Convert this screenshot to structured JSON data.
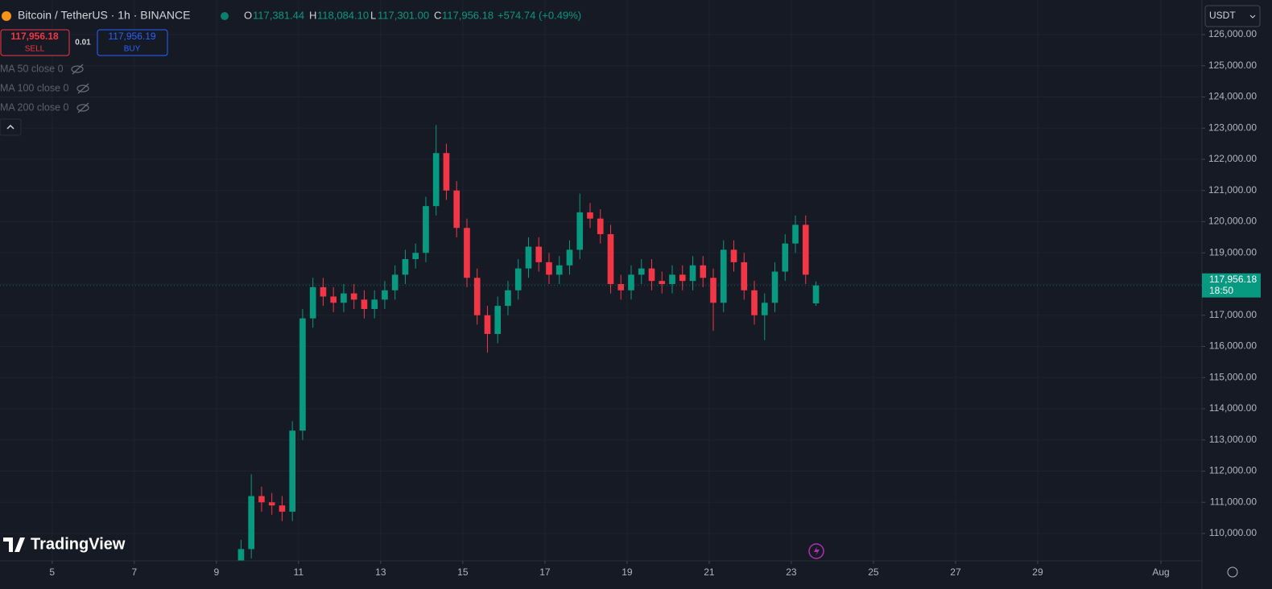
{
  "header": {
    "symbol": "Bitcoin / TetherUS · 1h · BINANCE",
    "o_label": "O",
    "open": "117,381.44",
    "h_label": "H",
    "high": "118,084.10",
    "l_label": "L",
    "low": "117,301.00",
    "c_label": "C",
    "close": "117,956.18",
    "change": "+574.74 (+0.49%)"
  },
  "trade": {
    "sell_price": "117,956.18",
    "sell": "SELL",
    "qty": "0.01",
    "buy_price": "117,956.19",
    "buy": "BUY"
  },
  "indicators": [
    "MA 50 close 0",
    "MA 100 close 0",
    "MA 200 close 0"
  ],
  "currency": "USDT",
  "logo": "TradingView",
  "price_tag": {
    "price": "117,956.18",
    "countdown": "18:50"
  },
  "chart_data": {
    "type": "candlestick",
    "x": [
      9.6,
      9.85,
      10.1,
      10.35,
      10.6,
      10.85,
      11.1,
      11.35,
      11.6,
      11.85,
      12.1,
      12.35,
      12.6,
      12.85,
      13.1,
      13.35,
      13.6,
      13.85,
      14.1,
      14.35,
      14.6,
      14.85,
      15.1,
      15.35,
      15.6,
      15.85,
      16.1,
      16.35,
      16.6,
      16.85,
      17.1,
      17.35,
      17.6,
      17.85,
      18.1,
      18.35,
      18.6,
      18.85,
      19.1,
      19.35,
      19.6,
      19.85,
      20.1,
      20.35,
      20.6,
      20.85,
      21.1,
      21.35,
      21.6,
      21.85,
      22.1,
      22.35,
      22.6,
      22.85,
      23.1,
      23.35,
      23.6
    ],
    "open": [
      108800,
      109500,
      111200,
      111000,
      110900,
      110700,
      113300,
      116900,
      117900,
      117600,
      117400,
      117700,
      117500,
      117200,
      117500,
      117800,
      118300,
      118800,
      119000,
      120500,
      122200,
      121000,
      119800,
      118200,
      117000,
      116400,
      117300,
      117800,
      118500,
      119200,
      118700,
      118300,
      118600,
      119100,
      120300,
      120100,
      119600,
      118000,
      117800,
      118300,
      118500,
      118100,
      118000,
      118300,
      118100,
      118600,
      118200,
      117400,
      119100,
      118700,
      117800,
      117000,
      117400,
      118400,
      119300,
      119900,
      117381.44
    ],
    "high": [
      109800,
      111900,
      111500,
      111300,
      111200,
      113600,
      117200,
      118200,
      118200,
      117900,
      118000,
      118000,
      117800,
      117800,
      118100,
      118600,
      119100,
      119300,
      120800,
      123100,
      122500,
      121300,
      120100,
      118500,
      117300,
      117600,
      118100,
      118800,
      119500,
      119500,
      119000,
      118900,
      119400,
      120900,
      120600,
      120400,
      119900,
      118300,
      118600,
      118800,
      118800,
      118400,
      118600,
      118600,
      118900,
      118900,
      118500,
      119400,
      119400,
      119000,
      118100,
      117700,
      118700,
      119600,
      120200,
      120200,
      118084.1
    ],
    "low": [
      108500,
      109200,
      110700,
      110600,
      110400,
      110400,
      113000,
      116600,
      117300,
      117100,
      117100,
      117200,
      116900,
      116900,
      117200,
      117500,
      118000,
      118500,
      118700,
      120200,
      120700,
      119500,
      117900,
      116700,
      115800,
      116100,
      117000,
      117500,
      118200,
      118400,
      118000,
      118000,
      118300,
      118800,
      119800,
      119300,
      117700,
      117500,
      117500,
      118000,
      117800,
      117700,
      117700,
      117800,
      117800,
      117900,
      116500,
      117100,
      118400,
      117500,
      116700,
      116200,
      117100,
      118100,
      119000,
      118000,
      117301.0
    ],
    "close": [
      109500,
      111200,
      111000,
      110900,
      110700,
      113300,
      116900,
      117900,
      117600,
      117400,
      117700,
      117500,
      117200,
      117500,
      117800,
      118300,
      118800,
      119000,
      120500,
      122200,
      121000,
      119800,
      118200,
      117000,
      116400,
      117300,
      117800,
      118500,
      119200,
      118700,
      118300,
      118600,
      119100,
      120300,
      120100,
      119600,
      118000,
      117800,
      118300,
      118500,
      118100,
      118000,
      118300,
      118100,
      118600,
      118200,
      117400,
      119100,
      118700,
      117800,
      117000,
      117400,
      118400,
      119300,
      119900,
      118300,
      117956.18
    ],
    "up_color": "#089981",
    "down_color": "#f23645",
    "xlim": [
      3.73,
      33
    ],
    "ylim": [
      109123,
      127110
    ],
    "xticks": [
      5,
      7,
      9,
      11,
      13,
      15,
      17,
      19,
      21,
      23,
      25,
      27,
      29,
      {
        "value": 32,
        "label": "Aug"
      }
    ],
    "yticks": [
      {
        "value": 110000,
        "label": "110,000.00"
      },
      {
        "value": 111000,
        "label": "111,000.00"
      },
      {
        "value": 112000,
        "label": "112,000.00"
      },
      {
        "value": 113000,
        "label": "113,000.00"
      },
      {
        "value": 114000,
        "label": "114,000.00"
      },
      {
        "value": 115000,
        "label": "115,000.00"
      },
      {
        "value": 116000,
        "label": "116,000.00"
      },
      {
        "value": 117000,
        "label": "117,000.00"
      },
      {
        "value": 118000,
        "label": "118,000.00"
      },
      {
        "value": 119000,
        "label": "119,000.00"
      },
      {
        "value": 120000,
        "label": "120,000.00"
      },
      {
        "value": 121000,
        "label": "121,000.00"
      },
      {
        "value": 122000,
        "label": "122,000.00"
      },
      {
        "value": 123000,
        "label": "123,000.00"
      },
      {
        "value": 124000,
        "label": "124,000.00"
      },
      {
        "value": 125000,
        "label": "125,000.00"
      },
      {
        "value": 126000,
        "label": "126,000.00"
      }
    ],
    "grid": true
  }
}
